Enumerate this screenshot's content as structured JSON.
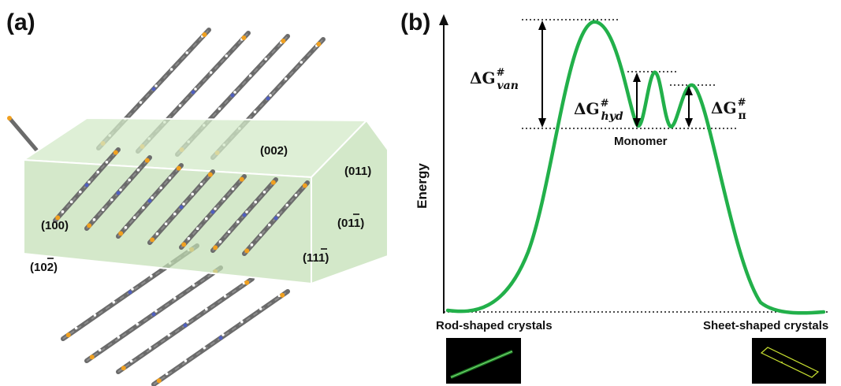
{
  "panel_a": {
    "label": "(a)",
    "faces": {
      "f002": "(002)",
      "f011": "(011)",
      "f100": "(100)",
      "f01b": "(01",
      "f01b_bar": "1",
      "f11b": "(11",
      "f11b_bar": "1",
      "f10b": "(10",
      "f10b_bar": "2",
      "close": ")"
    },
    "colors": {
      "box_fill": "#cfe8c4",
      "box_edge": "#ffffff",
      "carbon": "#6b6b6b",
      "sulfur": "#f0a020",
      "nitrogen": "#5060c0",
      "hydrogen": "#ffffff"
    }
  },
  "panel_b": {
    "label": "(b)",
    "ylabel": "Energy",
    "barriers": {
      "van": {
        "delta": "ΔG",
        "sup": "#",
        "sub": "van"
      },
      "hyd": {
        "delta": "ΔG",
        "sup": "#",
        "sub": "hyd"
      },
      "pi": {
        "delta": "ΔG",
        "sup": "#",
        "sub": "π"
      }
    },
    "monomer": "Monomer",
    "left_caption": "Rod-shaped crystals",
    "right_caption": "Sheet-shaped crystals",
    "colors": {
      "curve": "#22b04a",
      "arrow": "#000000"
    }
  }
}
